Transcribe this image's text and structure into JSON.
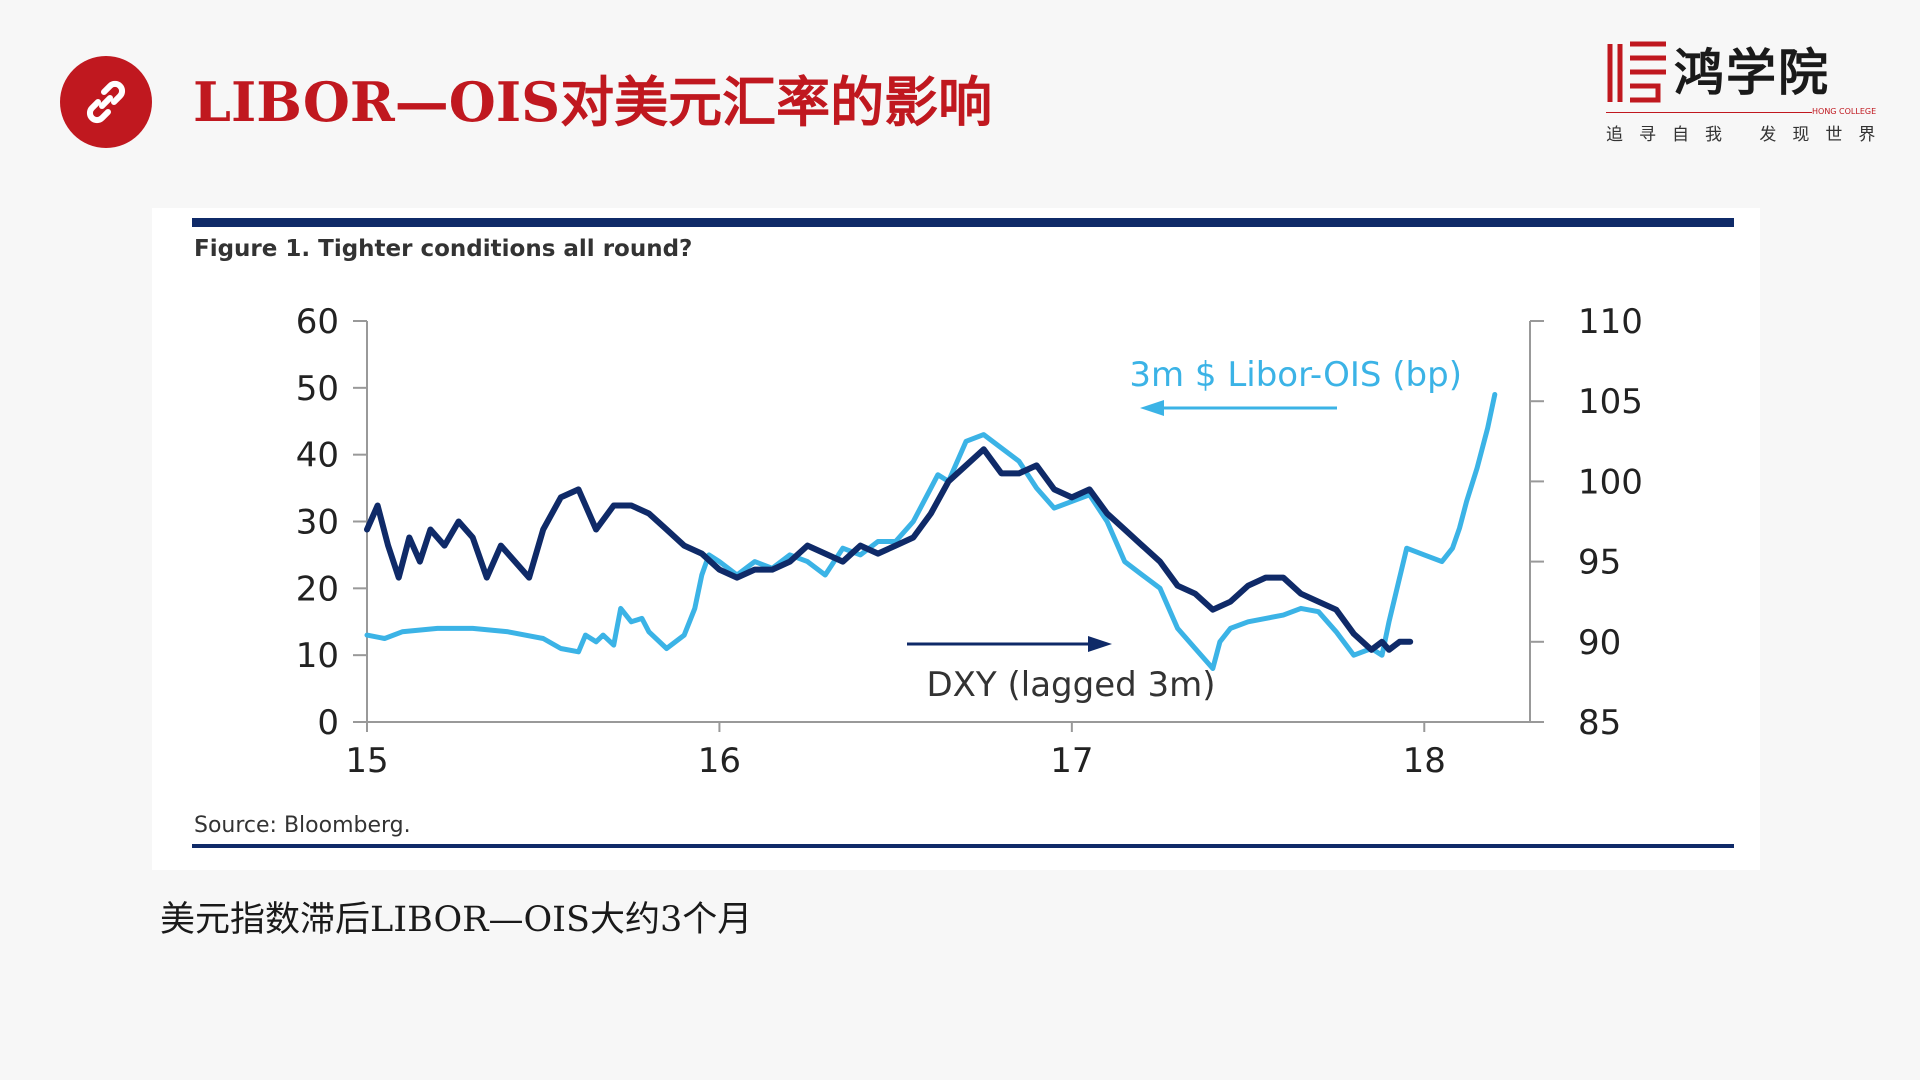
{
  "slide": {
    "title": "LIBOR—OIS对美元汇率的影响",
    "caption": "美元指数滞后LIBOR—OIS大约3个月",
    "title_icon": "link-icon",
    "accent_color": "#c0181f"
  },
  "brand": {
    "name": "鸿学院",
    "english": "HONG COLLEGE",
    "slogan": "追寻自我  发现世界",
    "logo_icon": "hong-college-logo-icon"
  },
  "chart_data": {
    "type": "line",
    "title": "Figure 1. Tighter conditions all round?",
    "source": "Source: Bloomberg.",
    "x_ticks": [
      "15",
      "16",
      "17",
      "18"
    ],
    "x_range": [
      2015.0,
      2018.3
    ],
    "y_left": {
      "ticks": [
        "60",
        "50",
        "40",
        "30",
        "20",
        "10",
        "0"
      ],
      "range": [
        0,
        60
      ]
    },
    "y_right": {
      "ticks": [
        "110",
        "105",
        "100",
        "95",
        "90",
        "85"
      ],
      "range": [
        85,
        110
      ]
    },
    "grid": false,
    "series": [
      {
        "name": "3m $ Libor-OIS (bp)",
        "axis": "left",
        "color": "#3bb3e6",
        "x": [
          2015.0,
          2015.05,
          2015.1,
          2015.2,
          2015.3,
          2015.4,
          2015.5,
          2015.55,
          2015.6,
          2015.62,
          2015.65,
          2015.67,
          2015.7,
          2015.72,
          2015.75,
          2015.78,
          2015.8,
          2015.85,
          2015.9,
          2015.93,
          2015.95,
          2015.97,
          2016.0,
          2016.05,
          2016.1,
          2016.15,
          2016.2,
          2016.25,
          2016.3,
          2016.35,
          2016.4,
          2016.45,
          2016.5,
          2016.55,
          2016.6,
          2016.62,
          2016.65,
          2016.7,
          2016.75,
          2016.8,
          2016.85,
          2016.9,
          2016.95,
          2017.0,
          2017.05,
          2017.1,
          2017.15,
          2017.2,
          2017.25,
          2017.3,
          2017.35,
          2017.4,
          2017.42,
          2017.45,
          2017.5,
          2017.55,
          2017.6,
          2017.65,
          2017.7,
          2017.75,
          2017.8,
          2017.85,
          2017.88,
          2017.9,
          2017.95,
          2018.0,
          2018.05,
          2018.08,
          2018.1,
          2018.12,
          2018.15,
          2018.18,
          2018.2
        ],
        "y": [
          13,
          12.5,
          13.5,
          14,
          14,
          13.5,
          12.5,
          11,
          10.5,
          13,
          12,
          13,
          11.5,
          17,
          15,
          15.5,
          13.5,
          11,
          13,
          17,
          22,
          25,
          24,
          22,
          24,
          23,
          25,
          24,
          22,
          26,
          25,
          27,
          27,
          30,
          35,
          37,
          36,
          42,
          43,
          41,
          39,
          35,
          32,
          33,
          34,
          30,
          24,
          22,
          20,
          14,
          11,
          8,
          12,
          14,
          15,
          15.5,
          16,
          17,
          16.5,
          13.5,
          10,
          11,
          10,
          15,
          26,
          25,
          24,
          26,
          29,
          33,
          38,
          44,
          49
        ]
      },
      {
        "name": "DXY (lagged 3m)",
        "axis": "right",
        "color": "#0f2a68",
        "x": [
          2015.0,
          2015.03,
          2015.06,
          2015.09,
          2015.12,
          2015.15,
          2015.18,
          2015.22,
          2015.26,
          2015.3,
          2015.34,
          2015.38,
          2015.42,
          2015.46,
          2015.5,
          2015.55,
          2015.6,
          2015.65,
          2015.7,
          2015.75,
          2015.8,
          2015.85,
          2015.9,
          2015.95,
          2016.0,
          2016.05,
          2016.1,
          2016.15,
          2016.2,
          2016.25,
          2016.3,
          2016.35,
          2016.4,
          2016.45,
          2016.5,
          2016.55,
          2016.6,
          2016.65,
          2016.7,
          2016.75,
          2016.8,
          2016.85,
          2016.9,
          2016.95,
          2017.0,
          2017.05,
          2017.1,
          2017.15,
          2017.2,
          2017.25,
          2017.3,
          2017.35,
          2017.4,
          2017.45,
          2017.5,
          2017.55,
          2017.6,
          2017.65,
          2017.7,
          2017.75,
          2017.8,
          2017.85,
          2017.88,
          2017.9,
          2017.93,
          2017.96
        ],
        "y": [
          97,
          98.5,
          96,
          94,
          96.5,
          95,
          97,
          96,
          97.5,
          96.5,
          94,
          96,
          95,
          94,
          97,
          99,
          99.5,
          97,
          98.5,
          98.5,
          98,
          97,
          96,
          95.5,
          94.5,
          94,
          94.5,
          94.5,
          95,
          96,
          95.5,
          95,
          96,
          95.5,
          96,
          96.5,
          98,
          100,
          101,
          102,
          100.5,
          100.5,
          101,
          99.5,
          99,
          99.5,
          98,
          97,
          96,
          95,
          93.5,
          93,
          92,
          92.5,
          93.5,
          94,
          94,
          93,
          92.5,
          92,
          90.5,
          89.5,
          90,
          89.5,
          90,
          90
        ]
      }
    ],
    "annotations": [
      {
        "text": "3m $ Libor-OIS (bp)",
        "arrow": "left",
        "color": "#3bb3e6"
      },
      {
        "text": "DXY (lagged 3m)",
        "arrow": "right",
        "color": "#0f2a68"
      }
    ]
  }
}
